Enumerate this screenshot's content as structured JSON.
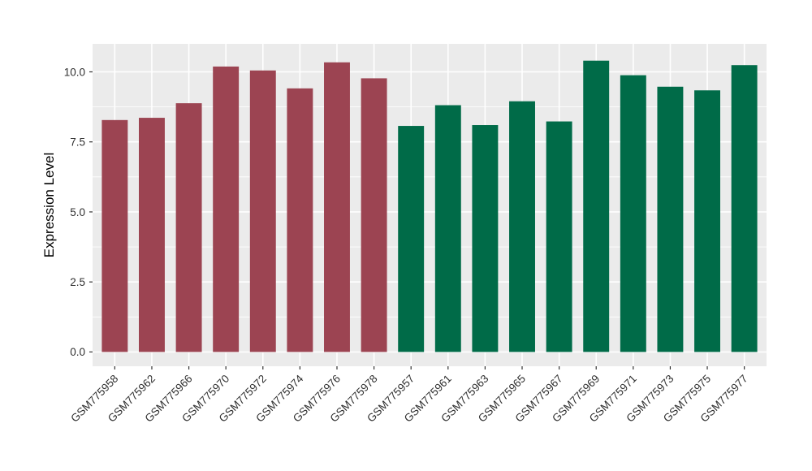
{
  "figure": {
    "background": "#FFFFFF"
  },
  "chart_data": {
    "type": "bar",
    "title": "",
    "xlabel": "",
    "ylabel": "Expression Level",
    "ylim": [
      -0.51,
      11.0
    ],
    "yticks": [
      "0.0",
      "2.5",
      "5.0",
      "7.5",
      "10.0"
    ],
    "grid": "major and minor horizontal, major vertical at category centers",
    "legend_position": "none",
    "panel_background": "#EBEBEB",
    "grid_color": "#FFFFFF",
    "tick_mark_color": "#333333",
    "tick_label_color": "#303030",
    "axis_title_color": "#000000",
    "bar_width_fraction": 0.7,
    "x_label_angle_deg": 45,
    "groups": [
      {
        "color": "#9C4452",
        "bars": [
          {
            "label": "GSM775958",
            "value": 8.28
          },
          {
            "label": "GSM775962",
            "value": 8.36
          },
          {
            "label": "GSM775966",
            "value": 8.88
          },
          {
            "label": "GSM775970",
            "value": 10.19
          },
          {
            "label": "GSM775972",
            "value": 10.05
          },
          {
            "label": "GSM775974",
            "value": 9.41
          },
          {
            "label": "GSM775976",
            "value": 10.34
          },
          {
            "label": "GSM775978",
            "value": 9.77
          }
        ]
      },
      {
        "color": "#006B48",
        "bars": [
          {
            "label": "GSM775957",
            "value": 8.07
          },
          {
            "label": "GSM775961",
            "value": 8.81
          },
          {
            "label": "GSM775963",
            "value": 8.1
          },
          {
            "label": "GSM775965",
            "value": 8.95
          },
          {
            "label": "GSM775967",
            "value": 8.23
          },
          {
            "label": "GSM775969",
            "value": 10.4
          },
          {
            "label": "GSM775971",
            "value": 9.88
          },
          {
            "label": "GSM775973",
            "value": 9.47
          },
          {
            "label": "GSM775975",
            "value": 9.34
          },
          {
            "label": "GSM775977",
            "value": 10.24
          }
        ]
      }
    ]
  }
}
